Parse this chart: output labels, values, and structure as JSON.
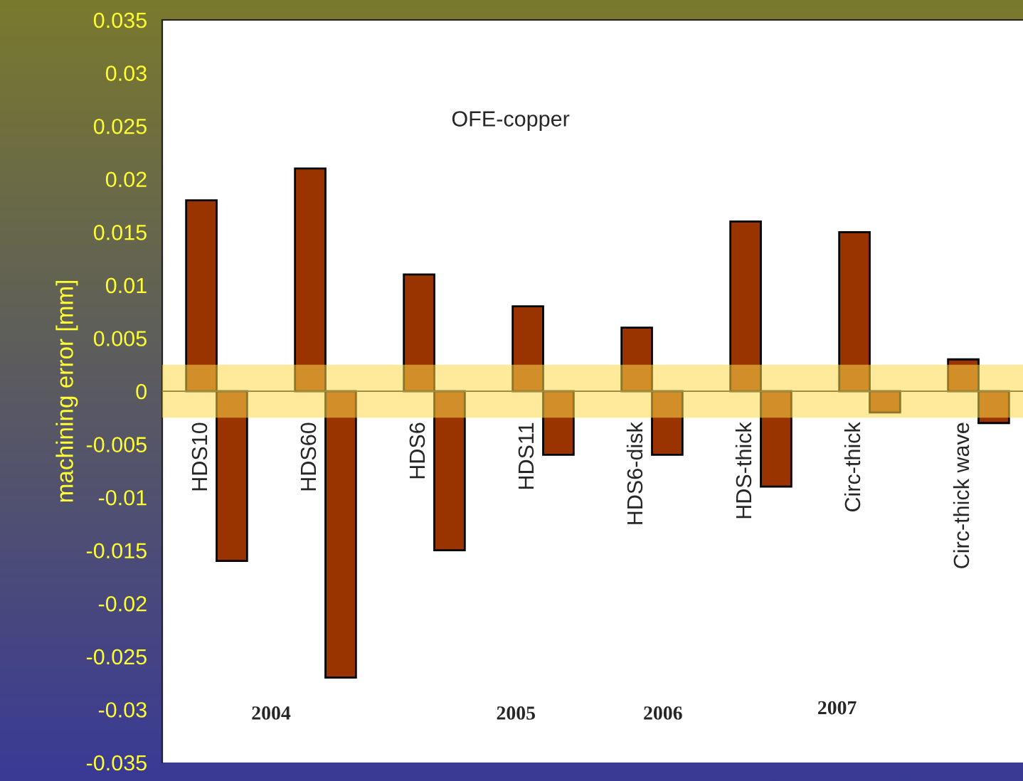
{
  "chart_data": {
    "type": "bar",
    "ylabel": "machining error [mm]",
    "categories": [
      "HDS10",
      "HDS60",
      "HDS6",
      "HDS11",
      "HDS6-disk",
      "HDS-thick",
      "Circ-thick",
      "Circ-thick wave"
    ],
    "series": [
      {
        "color": "#993300",
        "values": [
          0.018,
          0.021,
          0.011,
          0.008,
          0.006,
          0.016,
          0.015,
          0.003
        ]
      },
      {
        "color": "#993300",
        "values": [
          -0.016,
          -0.027,
          -0.015,
          -0.006,
          -0.006,
          -0.009,
          -0.002,
          -0.003
        ]
      }
    ],
    "ylim": [
      -0.035,
      0.035
    ],
    "yticks": [
      -0.035,
      -0.03,
      -0.025,
      -0.02,
      -0.015,
      -0.01,
      -0.005,
      0,
      0.005,
      0.01,
      0.015,
      0.02,
      0.025,
      0.03,
      0.035
    ],
    "bands": [
      {
        "axis": "y",
        "from": -0.0025,
        "to": 0.0025,
        "color": "#ffd84a"
      }
    ],
    "annotations": [
      "OFE-copper",
      "2004",
      "2005",
      "2006",
      "2007"
    ],
    "grid": false,
    "legend": false
  }
}
